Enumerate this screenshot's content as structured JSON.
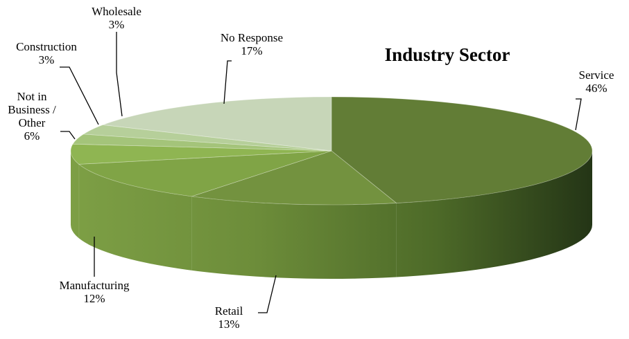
{
  "chart_data": {
    "type": "pie",
    "title": "Industry Sector",
    "slices": [
      {
        "label": "Service",
        "value": 46,
        "value_label": "46%",
        "color": "#627d36"
      },
      {
        "label": "Retail",
        "value": 13,
        "value_label": "13%",
        "color": "#73923f"
      },
      {
        "label": "Manufacturing",
        "value": 12,
        "value_label": "12%",
        "color": "#80a446"
      },
      {
        "label": "Not in Business / Other",
        "value": 6,
        "value_label": "6%",
        "color": "#8fb552"
      },
      {
        "label": "Construction",
        "value": 3,
        "value_label": "3%",
        "color": "#a4c47a"
      },
      {
        "label": "Wholesale",
        "value": 3,
        "value_label": "3%",
        "color": "#b6cf9a"
      },
      {
        "label": "No Response",
        "value": 17,
        "value_label": "17%",
        "color": "#c7d6b8"
      }
    ]
  }
}
